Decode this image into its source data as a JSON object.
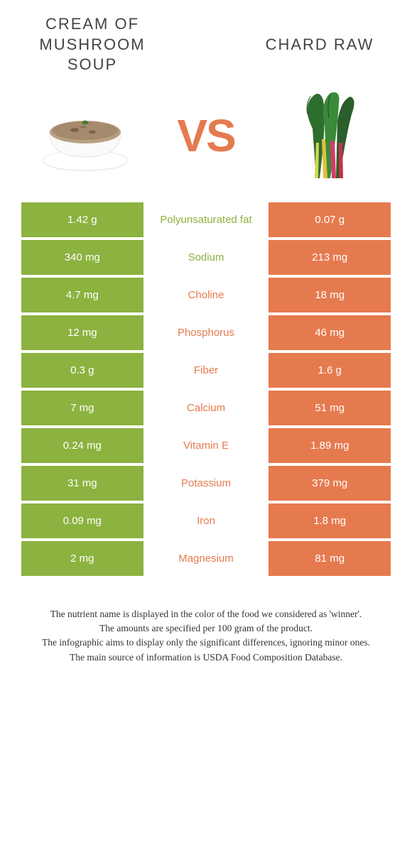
{
  "colors": {
    "green": "#8cb23f",
    "orange": "#e67a4f",
    "text_dark": "#333333",
    "title_color": "#444444",
    "vs_color": "#e67a4f"
  },
  "titles": {
    "left": "CREAM OF MUSHROOM SOUP",
    "right": "CHARD RAW",
    "vs": "VS"
  },
  "rows": [
    {
      "left": "1.42 g",
      "label": "Polyunsaturated fat",
      "right": "0.07 g",
      "winner": "left",
      "winner_color": "#8cb23f"
    },
    {
      "left": "340 mg",
      "label": "Sodium",
      "right": "213 mg",
      "winner": "left",
      "winner_color": "#8cb23f"
    },
    {
      "left": "4.7 mg",
      "label": "Choline",
      "right": "18 mg",
      "winner": "right",
      "winner_color": "#e67a4f"
    },
    {
      "left": "12 mg",
      "label": "Phosphorus",
      "right": "46 mg",
      "winner": "right",
      "winner_color": "#e67a4f"
    },
    {
      "left": "0.3 g",
      "label": "Fiber",
      "right": "1.6 g",
      "winner": "right",
      "winner_color": "#e67a4f"
    },
    {
      "left": "7 mg",
      "label": "Calcium",
      "right": "51 mg",
      "winner": "right",
      "winner_color": "#e67a4f"
    },
    {
      "left": "0.24 mg",
      "label": "Vitamin E",
      "right": "1.89 mg",
      "winner": "right",
      "winner_color": "#e67a4f"
    },
    {
      "left": "31 mg",
      "label": "Potassium",
      "right": "379 mg",
      "winner": "right",
      "winner_color": "#e67a4f"
    },
    {
      "left": "0.09 mg",
      "label": "Iron",
      "right": "1.8 mg",
      "winner": "right",
      "winner_color": "#e67a4f"
    },
    {
      "left": "2 mg",
      "label": "Magnesium",
      "right": "81 mg",
      "winner": "right",
      "winner_color": "#e67a4f"
    }
  ],
  "footer": {
    "line1": "The nutrient name is displayed in the color of the food we considered as 'winner'.",
    "line2": "The amounts are specified per 100 gram of the product.",
    "line3": "The infographic aims to display only the significant differences, ignoring minor ones.",
    "line4": "The main source of information is USDA Food Composition Database."
  }
}
